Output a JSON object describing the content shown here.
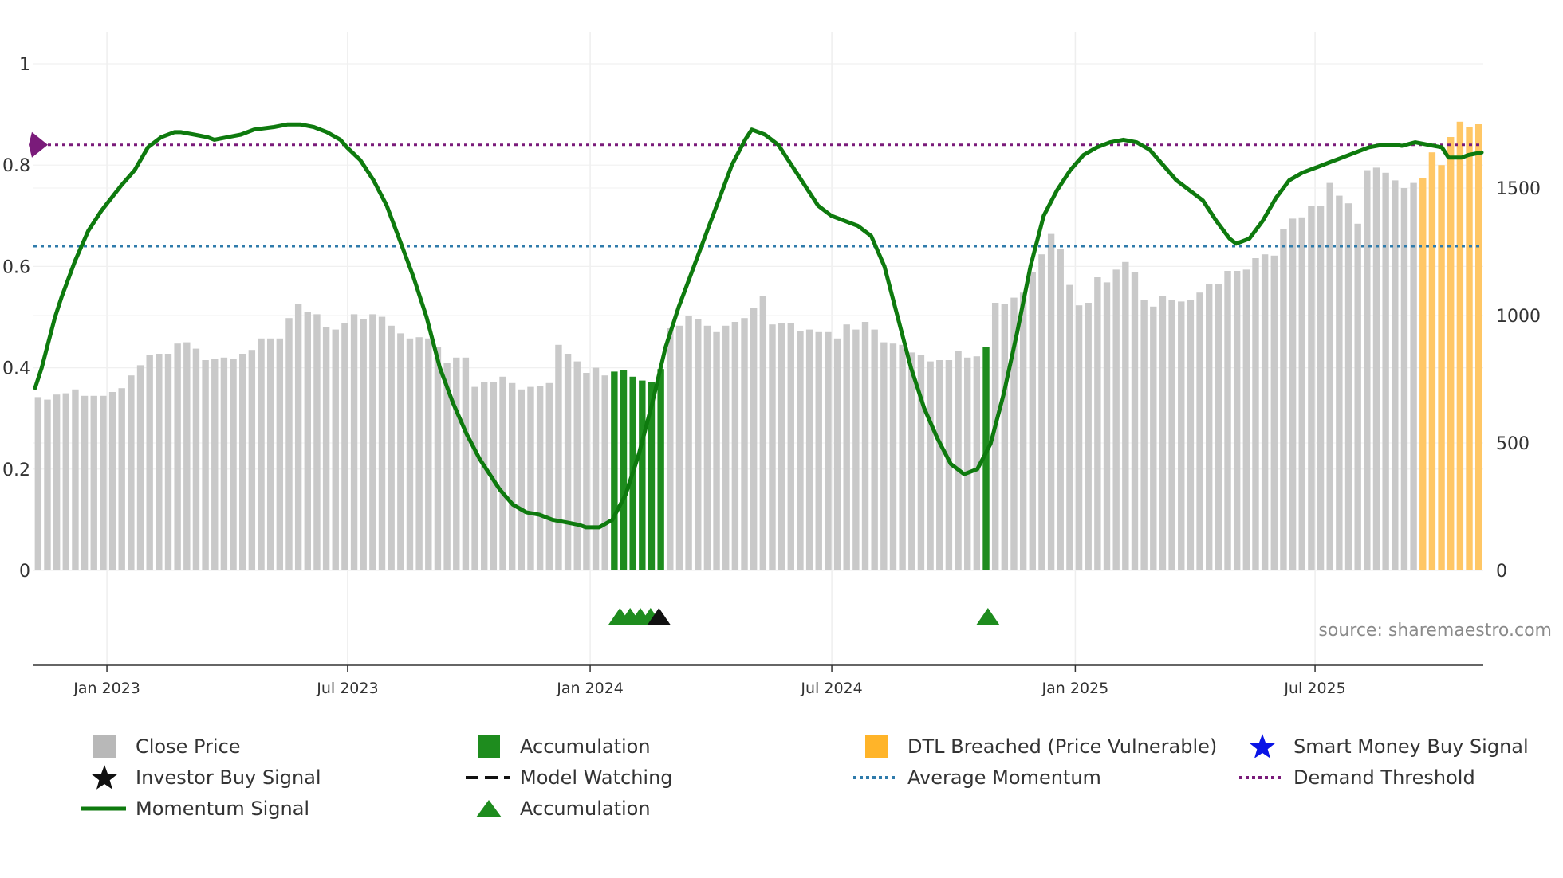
{
  "chart_data": {
    "type": "bar",
    "title": "",
    "xlabel": "",
    "ylabel_left": "",
    "ylabel_right": "",
    "left_axis": {
      "range": [
        0,
        1
      ],
      "ticks": [
        "0",
        "0.2",
        "0.4",
        "0.6",
        "0.8",
        "1"
      ],
      "tick_values": [
        0,
        0.2,
        0.4,
        0.6,
        0.8,
        1
      ]
    },
    "right_axis": {
      "range": [
        0,
        1900
      ],
      "ticks": [
        "0",
        "500",
        "1000",
        "1500"
      ],
      "tick_values": [
        0,
        500,
        1000,
        1500
      ]
    },
    "x_axis": {
      "ticks": [
        "Jan 2023",
        "Jul 2023",
        "Jan 2024",
        "Jul 2024",
        "Jan 2025",
        "Jul 2025"
      ],
      "tick_weeks": [
        7.4,
        33.3,
        59.4,
        85.4,
        111.6,
        137.4
      ]
    },
    "average_momentum": 0.64,
    "demand_threshold": 0.84,
    "close_prices": [
      680,
      670,
      690,
      695,
      710,
      685,
      685,
      685,
      700,
      715,
      765,
      805,
      845,
      850,
      850,
      890,
      895,
      870,
      825,
      830,
      835,
      830,
      850,
      865,
      910,
      910,
      910,
      990,
      1045,
      1015,
      1005,
      955,
      945,
      970,
      1005,
      985,
      1005,
      995,
      960,
      930,
      910,
      915,
      910,
      875,
      815,
      835,
      835,
      720,
      740,
      740,
      760,
      735,
      710,
      720,
      725,
      735,
      885,
      850,
      820,
      775,
      795,
      765,
      780,
      785,
      760,
      745,
      740,
      790,
      950,
      960,
      1000,
      985,
      960,
      935,
      960,
      975,
      990,
      1030,
      1075,
      965,
      970,
      970,
      940,
      945,
      935,
      935,
      910,
      965,
      945,
      975,
      945,
      895,
      890,
      885,
      855,
      845,
      820,
      825,
      825,
      860,
      835,
      840,
      875,
      1050,
      1045,
      1070,
      1090,
      1170,
      1240,
      1320,
      1260,
      1120,
      1040,
      1050,
      1150,
      1130,
      1180,
      1210,
      1170,
      1060,
      1035,
      1075,
      1060,
      1055,
      1060,
      1090,
      1125,
      1125,
      1175,
      1175,
      1180,
      1225,
      1240,
      1235,
      1340,
      1380,
      1385,
      1430,
      1430,
      1520,
      1470,
      1440,
      1360,
      1570,
      1580,
      1560,
      1530,
      1500,
      1520,
      1540,
      1640,
      1590,
      1700,
      1760,
      1740,
      1750
    ],
    "bar_categories": {
      "accumulation": [
        62,
        63,
        64,
        65,
        66,
        67,
        102
      ],
      "dtl_breached": [
        149,
        150,
        151,
        152,
        153,
        154,
        155
      ]
    },
    "momentum_signal": [
      [
        0,
        0.36
      ],
      [
        1,
        0.4
      ],
      [
        2,
        0.45
      ],
      [
        3,
        0.5
      ],
      [
        4,
        0.54
      ],
      [
        6,
        0.61
      ],
      [
        8,
        0.67
      ],
      [
        10,
        0.71
      ],
      [
        13,
        0.76
      ],
      [
        15,
        0.79
      ],
      [
        17,
        0.835
      ],
      [
        19,
        0.855
      ],
      [
        21,
        0.865
      ],
      [
        22,
        0.865
      ],
      [
        24,
        0.86
      ],
      [
        26,
        0.855
      ],
      [
        27,
        0.85
      ],
      [
        29,
        0.855
      ],
      [
        31,
        0.86
      ],
      [
        33,
        0.87
      ],
      [
        36,
        0.875
      ],
      [
        38,
        0.88
      ],
      [
        40,
        0.88
      ],
      [
        42,
        0.875
      ],
      [
        44,
        0.865
      ],
      [
        46,
        0.85
      ],
      [
        47,
        0.835
      ],
      [
        49,
        0.81
      ],
      [
        51,
        0.77
      ],
      [
        53,
        0.72
      ],
      [
        55,
        0.65
      ],
      [
        57,
        0.58
      ],
      [
        59,
        0.5
      ],
      [
        61,
        0.4
      ],
      [
        63,
        0.33
      ],
      [
        65,
        0.27
      ],
      [
        67,
        0.22
      ],
      [
        69,
        0.18
      ],
      [
        70,
        0.16
      ],
      [
        72,
        0.13
      ],
      [
        74,
        0.115
      ],
      [
        76,
        0.11
      ],
      [
        78,
        0.1
      ],
      [
        80,
        0.095
      ],
      [
        82,
        0.09
      ],
      [
        83,
        0.085
      ],
      [
        85,
        0.085
      ],
      [
        87,
        0.1
      ],
      [
        89,
        0.15
      ],
      [
        91,
        0.23
      ],
      [
        93,
        0.33
      ],
      [
        95,
        0.44
      ],
      [
        97,
        0.52
      ],
      [
        99,
        0.59
      ],
      [
        101,
        0.66
      ],
      [
        103,
        0.73
      ],
      [
        105,
        0.8
      ],
      [
        107,
        0.85
      ],
      [
        108,
        0.87
      ],
      [
        110,
        0.86
      ],
      [
        112,
        0.84
      ],
      [
        114,
        0.8
      ],
      [
        116,
        0.76
      ],
      [
        118,
        0.72
      ],
      [
        120,
        0.7
      ],
      [
        122,
        0.69
      ],
      [
        124,
        0.68
      ],
      [
        126,
        0.66
      ],
      [
        128,
        0.6
      ],
      [
        130,
        0.5
      ],
      [
        132,
        0.4
      ],
      [
        134,
        0.32
      ],
      [
        136,
        0.26
      ],
      [
        138,
        0.21
      ],
      [
        140,
        0.19
      ],
      [
        142,
        0.2
      ],
      [
        144,
        0.25
      ],
      [
        146,
        0.35
      ],
      [
        148,
        0.47
      ],
      [
        150,
        0.6
      ],
      [
        152,
        0.7
      ],
      [
        154,
        0.75
      ],
      [
        156,
        0.79
      ],
      [
        158,
        0.82
      ],
      [
        160,
        0.835
      ],
      [
        162,
        0.845
      ],
      [
        164,
        0.85
      ],
      [
        166,
        0.845
      ],
      [
        168,
        0.83
      ],
      [
        170,
        0.8
      ],
      [
        172,
        0.77
      ],
      [
        174,
        0.75
      ],
      [
        176,
        0.73
      ],
      [
        178,
        0.69
      ],
      [
        180,
        0.655
      ],
      [
        181,
        0.645
      ],
      [
        183,
        0.655
      ],
      [
        185,
        0.69
      ],
      [
        187,
        0.735
      ],
      [
        189,
        0.77
      ],
      [
        191,
        0.785
      ],
      [
        193,
        0.795
      ],
      [
        195,
        0.805
      ],
      [
        197,
        0.815
      ],
      [
        199,
        0.825
      ],
      [
        201,
        0.835
      ],
      [
        203,
        0.84
      ],
      [
        205,
        0.84
      ],
      [
        206,
        0.838
      ],
      [
        208,
        0.845
      ],
      [
        210,
        0.84
      ],
      [
        212,
        0.835
      ],
      [
        213,
        0.815
      ],
      [
        215,
        0.815
      ],
      [
        216,
        0.82
      ],
      [
        218,
        0.825
      ]
    ],
    "momentum_scale_x": [
      0,
      156
    ],
    "markers": [
      {
        "type": "accumulation",
        "week": 62.6
      },
      {
        "type": "accumulation",
        "week": 63.7
      },
      {
        "type": "accumulation",
        "week": 64.8
      },
      {
        "type": "accumulation",
        "week": 65.9
      },
      {
        "type": "investor_buy",
        "week": 66.8
      },
      {
        "type": "accumulation",
        "week": 102.2
      }
    ],
    "colors": {
      "close": "#c9c9c9",
      "accumulation": "#1e8c1e",
      "dtl": "#ffc766",
      "momentum": "#0e7a0e",
      "avg_momentum": "#2f7bab",
      "demand_threshold": "#7a1b7a",
      "axis": "#333333"
    },
    "source": "source: sharemaestro.com",
    "legend": [
      {
        "id": "close",
        "label": "Close Price",
        "symbol": "gray-square"
      },
      {
        "id": "accum-bar",
        "label": "Accumulation",
        "symbol": "green-square"
      },
      {
        "id": "dtl",
        "label": "DTL Breached (Price Vulnerable)",
        "symbol": "orange-square"
      },
      {
        "id": "smart",
        "label": "Smart Money Buy Signal",
        "symbol": "blue-star"
      },
      {
        "id": "investor",
        "label": "Investor Buy Signal",
        "symbol": "black-star"
      },
      {
        "id": "watching",
        "label": "Model Watching",
        "symbol": "black-dash"
      },
      {
        "id": "avgmom",
        "label": "Average Momentum",
        "symbol": "blue-dots"
      },
      {
        "id": "demand",
        "label": "Demand Threshold",
        "symbol": "purple-dots"
      },
      {
        "id": "momentum",
        "label": "Momentum Signal",
        "symbol": "green-line"
      },
      {
        "id": "accum-tri",
        "label": "Accumulation",
        "symbol": "green-triangle"
      }
    ]
  }
}
